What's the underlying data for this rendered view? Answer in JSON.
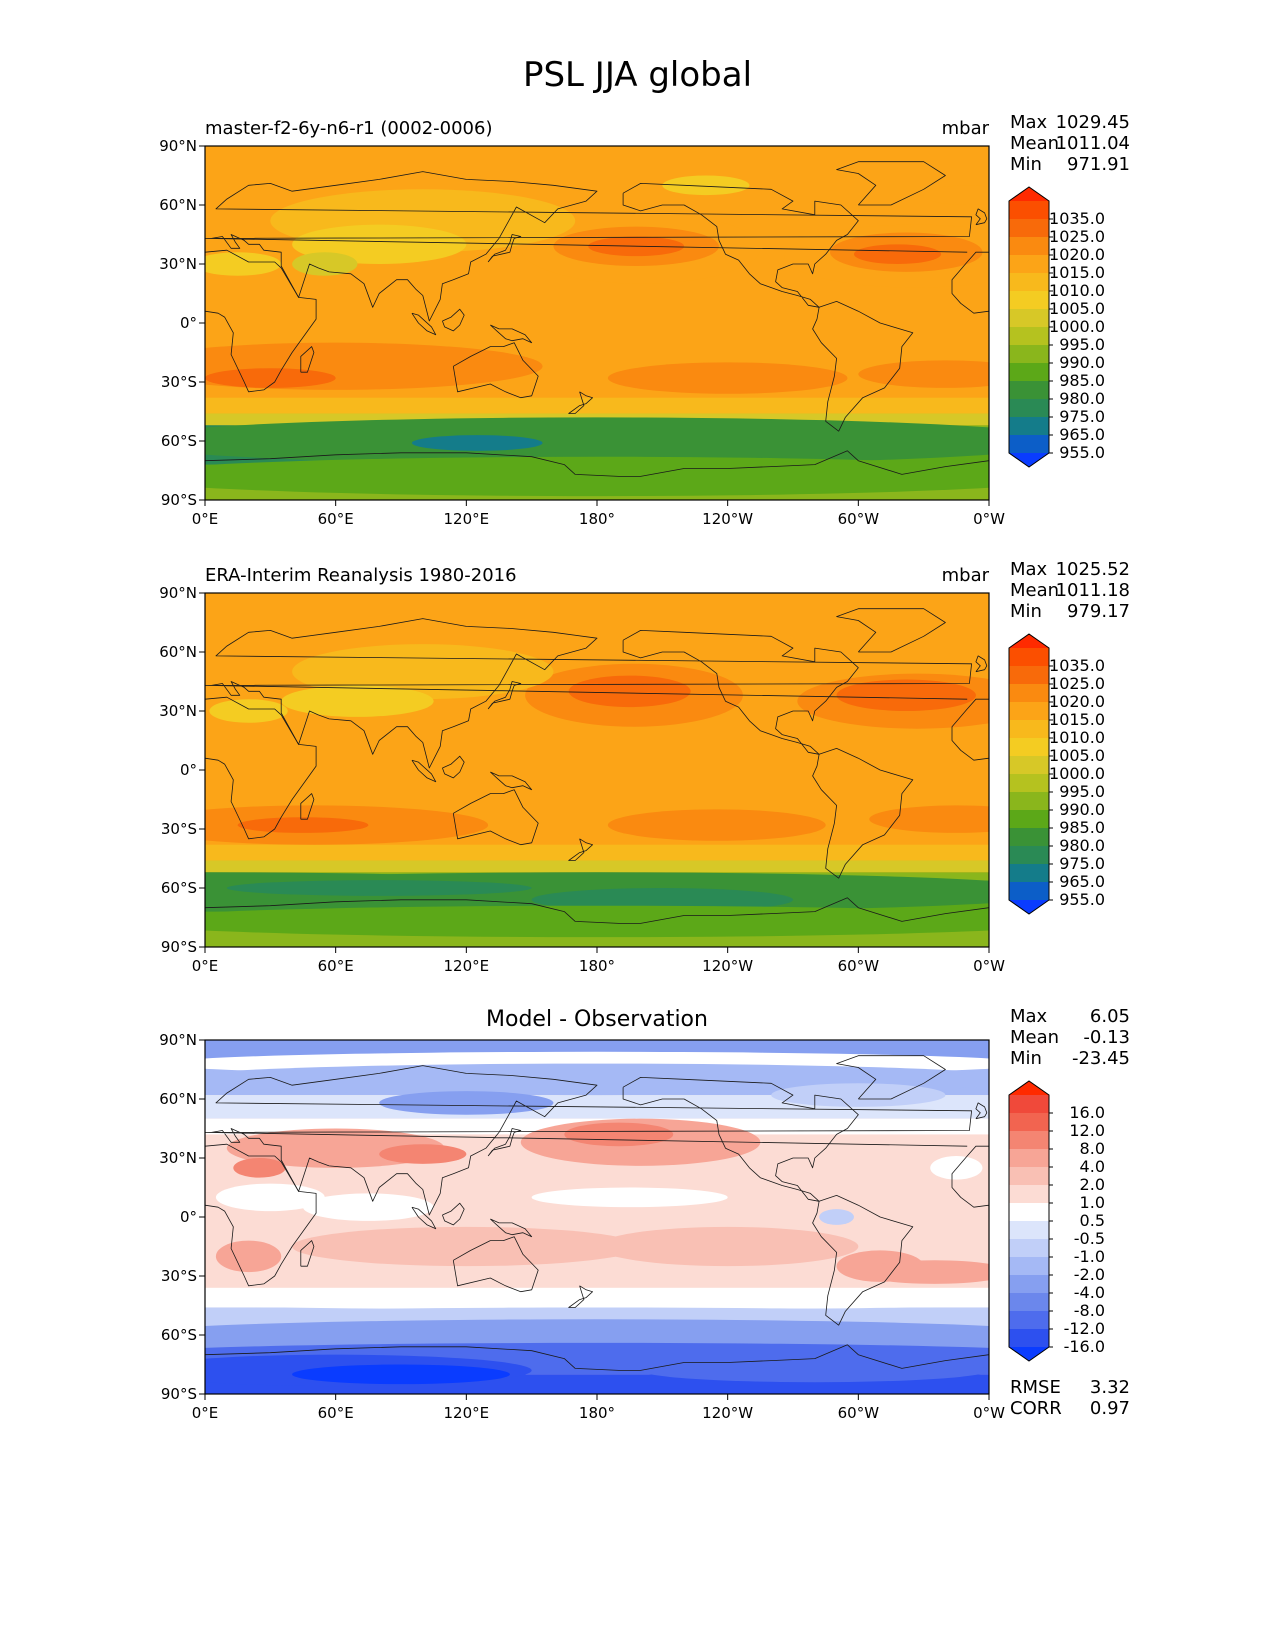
{
  "figure_title": "PSL JJA global",
  "panels": [
    {
      "id": "test",
      "title_left": "master-f2-6y-n6-r1 (0002-0006)",
      "title_center": "",
      "units": "mbar",
      "stats": [
        {
          "label": "Max",
          "value": "1029.45"
        },
        {
          "label": "Mean",
          "value": "1011.04"
        },
        {
          "label": "Min",
          "value": "971.91"
        }
      ],
      "colorbar_ticks": [
        "1035.0",
        "1025.0",
        "1020.0",
        "1015.0",
        "1010.0",
        "1005.0",
        "1000.0",
        "995.0",
        "990.0",
        "985.0",
        "980.0",
        "975.0",
        "965.0",
        "955.0"
      ],
      "colorbar_colors": [
        "#ff2a00",
        "#fb4f00",
        "#f86a0a",
        "#fa8a10",
        "#fca417",
        "#f8b91c",
        "#f4cc22",
        "#d7c827",
        "#b5c21f",
        "#8ab61c",
        "#5ca818",
        "#3a9236",
        "#2a8a55",
        "#147c8a",
        "#0c5ec8",
        "#0a3cff"
      ],
      "footer": []
    },
    {
      "id": "reference",
      "title_left": "ERA-Interim Reanalysis 1980-2016",
      "title_center": "",
      "units": "mbar",
      "stats": [
        {
          "label": "Max",
          "value": "1025.52"
        },
        {
          "label": "Mean",
          "value": "1011.18"
        },
        {
          "label": "Min",
          "value": "979.17"
        }
      ],
      "colorbar_ticks": [
        "1035.0",
        "1025.0",
        "1020.0",
        "1015.0",
        "1010.0",
        "1005.0",
        "1000.0",
        "995.0",
        "990.0",
        "985.0",
        "980.0",
        "975.0",
        "965.0",
        "955.0"
      ],
      "colorbar_colors": [
        "#ff2a00",
        "#fb4f00",
        "#f86a0a",
        "#fa8a10",
        "#fca417",
        "#f8b91c",
        "#f4cc22",
        "#d7c827",
        "#b5c21f",
        "#8ab61c",
        "#5ca818",
        "#3a9236",
        "#2a8a55",
        "#147c8a",
        "#0c5ec8",
        "#0a3cff"
      ],
      "footer": []
    },
    {
      "id": "diff",
      "title_left": "",
      "title_center": "Model - Observation",
      "units": "",
      "stats": [
        {
          "label": "Max",
          "value": "6.05"
        },
        {
          "label": "Mean",
          "value": "-0.13"
        },
        {
          "label": "Min",
          "value": "-23.45"
        }
      ],
      "colorbar_ticks": [
        "16.0",
        "12.0",
        "8.0",
        "4.0",
        "2.0",
        "1.0",
        "0.5",
        "-0.5",
        "-1.0",
        "-2.0",
        "-4.0",
        "-8.0",
        "-12.0",
        "-16.0"
      ],
      "colorbar_colors": [
        "#ff2a00",
        "#f0493a",
        "#f26450",
        "#f48572",
        "#f7a596",
        "#f9c0b4",
        "#fcdcd4",
        "#ffffff",
        "#dce5fb",
        "#c1cff8",
        "#a5b9f5",
        "#869ff0",
        "#6b87ec",
        "#4e6ced",
        "#2d50ef",
        "#0a3cff"
      ],
      "footer": [
        {
          "label": "RMSE",
          "value": "3.32"
        },
        {
          "label": "CORR",
          "value": "0.97"
        }
      ]
    }
  ],
  "axes": {
    "lat_ticks": [
      "90°N",
      "60°N",
      "30°N",
      "0°",
      "30°S",
      "60°S",
      "90°S"
    ],
    "lon_ticks": [
      "0°E",
      "60°E",
      "120°E",
      "180°",
      "120°W",
      "60°W",
      "0°W"
    ]
  },
  "map_data": {
    "type": "filled-contour-map",
    "projection": "PlateCarree",
    "central_longitude": 180,
    "variable": "PSL",
    "season": "JJA",
    "region": "global"
  }
}
